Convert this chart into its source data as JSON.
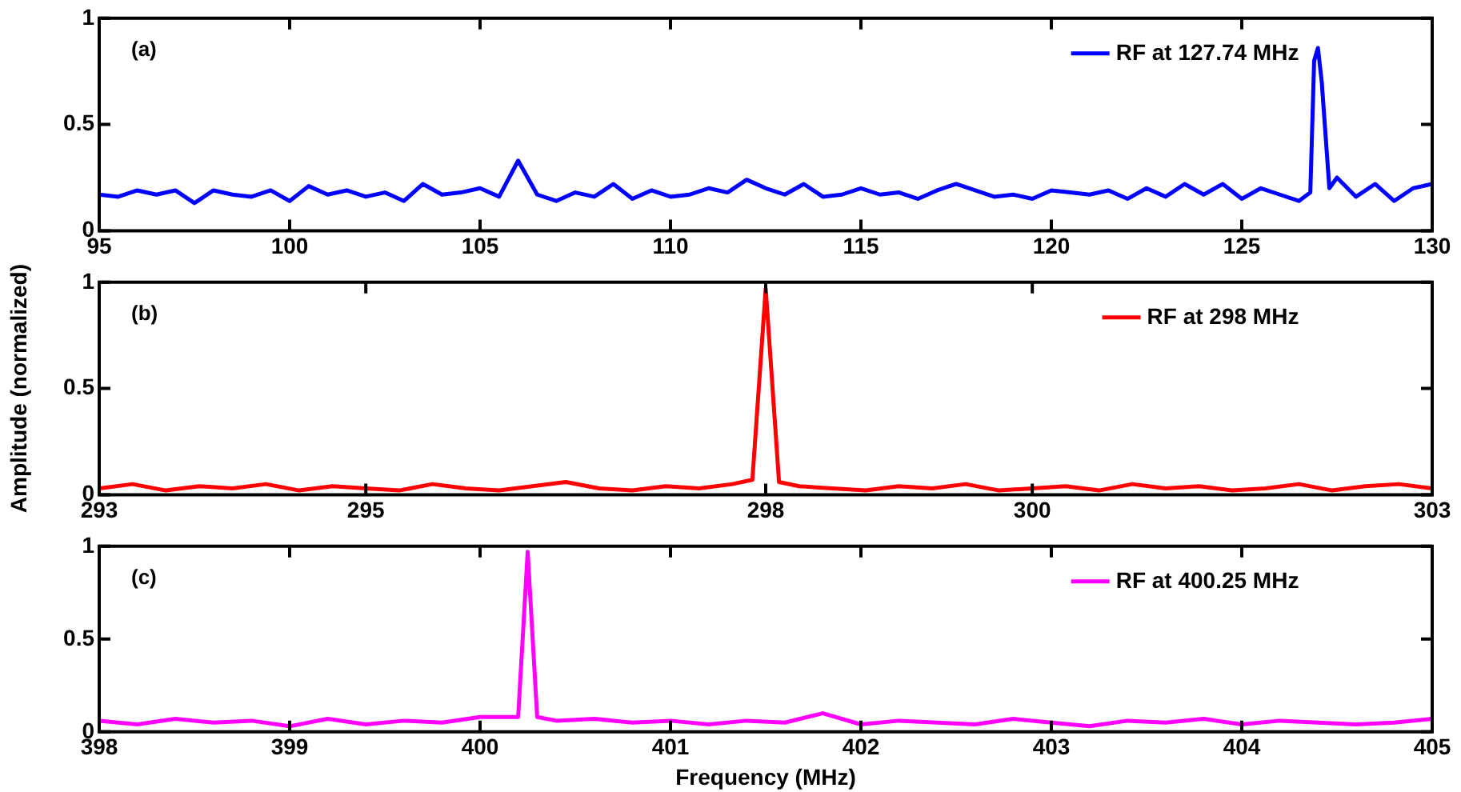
{
  "chart_data": [
    {
      "type": "line",
      "annotations": [
        "(a)"
      ],
      "xlim": [
        95,
        130
      ],
      "xticks": [
        95,
        100,
        105,
        110,
        115,
        120,
        125,
        130
      ],
      "ylim": [
        0,
        1
      ],
      "yticks": [
        0,
        0.5,
        1
      ],
      "grid": false,
      "legend": "top right",
      "marker": "none",
      "line_style": "solid",
      "series": [
        {
          "name": "RF at 127.74 MHz",
          "color": "#0000ff",
          "x": [
            95,
            95.5,
            96,
            96.5,
            97,
            97.5,
            98,
            98.5,
            99,
            99.5,
            100,
            100.5,
            101,
            101.5,
            102,
            102.5,
            103,
            103.5,
            104,
            104.5,
            105,
            105.5,
            106,
            106.5,
            107,
            107.5,
            108,
            108.5,
            109,
            109.5,
            110,
            110.5,
            111,
            111.5,
            112,
            112.5,
            113,
            113.5,
            114,
            114.5,
            115,
            115.5,
            116,
            116.5,
            117,
            117.5,
            118,
            118.5,
            119,
            119.5,
            120,
            120.5,
            121,
            121.5,
            122,
            122.5,
            123,
            123.5,
            124,
            124.5,
            125,
            125.5,
            126,
            126.5,
            126.8,
            126.9,
            127,
            127.1,
            127.3,
            127.5,
            128,
            128.5,
            129,
            129.5,
            130
          ],
          "values": [
            0.17,
            0.16,
            0.19,
            0.17,
            0.19,
            0.13,
            0.19,
            0.17,
            0.16,
            0.19,
            0.14,
            0.21,
            0.17,
            0.19,
            0.16,
            0.18,
            0.14,
            0.22,
            0.17,
            0.18,
            0.2,
            0.16,
            0.33,
            0.17,
            0.14,
            0.18,
            0.16,
            0.22,
            0.15,
            0.19,
            0.16,
            0.17,
            0.2,
            0.18,
            0.24,
            0.2,
            0.17,
            0.22,
            0.16,
            0.17,
            0.2,
            0.17,
            0.18,
            0.15,
            0.19,
            0.22,
            0.19,
            0.16,
            0.17,
            0.15,
            0.19,
            0.18,
            0.17,
            0.19,
            0.15,
            0.2,
            0.16,
            0.22,
            0.17,
            0.22,
            0.15,
            0.2,
            0.17,
            0.14,
            0.18,
            0.8,
            0.86,
            0.7,
            0.2,
            0.25,
            0.16,
            0.22,
            0.14,
            0.2,
            0.22
          ]
        }
      ]
    },
    {
      "type": "line",
      "annotations": [
        "(b)"
      ],
      "ylabel": "Amplitude (normalized)",
      "xlim": [
        293,
        303
      ],
      "xticks": [
        293,
        295,
        298,
        300,
        303
      ],
      "ylim": [
        0,
        1
      ],
      "yticks": [
        0,
        0.5,
        1
      ],
      "grid": false,
      "legend": "top right",
      "marker": "none",
      "line_style": "solid",
      "series": [
        {
          "name": "RF at 298 MHz",
          "color": "#ff0000",
          "x": [
            293,
            293.25,
            293.5,
            293.75,
            294,
            294.25,
            294.5,
            294.75,
            295,
            295.25,
            295.5,
            295.75,
            296,
            296.25,
            296.5,
            296.75,
            297,
            297.25,
            297.5,
            297.75,
            297.9,
            298,
            298.1,
            298.25,
            298.5,
            298.75,
            299,
            299.25,
            299.5,
            299.75,
            300,
            300.25,
            300.5,
            300.75,
            301,
            301.25,
            301.5,
            301.75,
            302,
            302.25,
            302.5,
            302.75,
            303
          ],
          "values": [
            0.03,
            0.05,
            0.02,
            0.04,
            0.03,
            0.05,
            0.02,
            0.04,
            0.03,
            0.02,
            0.05,
            0.03,
            0.02,
            0.04,
            0.06,
            0.03,
            0.02,
            0.04,
            0.03,
            0.05,
            0.07,
            0.97,
            0.06,
            0.04,
            0.03,
            0.02,
            0.04,
            0.03,
            0.05,
            0.02,
            0.03,
            0.04,
            0.02,
            0.05,
            0.03,
            0.04,
            0.02,
            0.03,
            0.05,
            0.02,
            0.04,
            0.05,
            0.03
          ]
        }
      ]
    },
    {
      "type": "line",
      "annotations": [
        "(c)"
      ],
      "xlabel": "Frequency (MHz)",
      "xlim": [
        398,
        405
      ],
      "xticks": [
        398,
        399,
        400,
        401,
        402,
        403,
        404,
        405
      ],
      "ylim": [
        0,
        1
      ],
      "yticks": [
        0,
        0.5,
        1
      ],
      "grid": false,
      "legend": "top right",
      "marker": "none",
      "line_style": "solid",
      "series": [
        {
          "name": "RF at 400.25 MHz",
          "color": "#ff00ff",
          "x": [
            398,
            398.2,
            398.4,
            398.6,
            398.8,
            399,
            399.2,
            399.4,
            399.6,
            399.8,
            400,
            400.2,
            400.25,
            400.3,
            400.4,
            400.6,
            400.8,
            401,
            401.2,
            401.4,
            401.6,
            401.8,
            402,
            402.2,
            402.4,
            402.6,
            402.8,
            403,
            403.2,
            403.4,
            403.6,
            403.8,
            404,
            404.2,
            404.4,
            404.6,
            404.8,
            405
          ],
          "values": [
            0.06,
            0.04,
            0.07,
            0.05,
            0.06,
            0.03,
            0.07,
            0.04,
            0.06,
            0.05,
            0.08,
            0.08,
            0.97,
            0.08,
            0.06,
            0.07,
            0.05,
            0.06,
            0.04,
            0.06,
            0.05,
            0.1,
            0.04,
            0.06,
            0.05,
            0.04,
            0.07,
            0.05,
            0.03,
            0.06,
            0.05,
            0.07,
            0.04,
            0.06,
            0.05,
            0.04,
            0.05,
            0.07
          ]
        }
      ]
    }
  ]
}
